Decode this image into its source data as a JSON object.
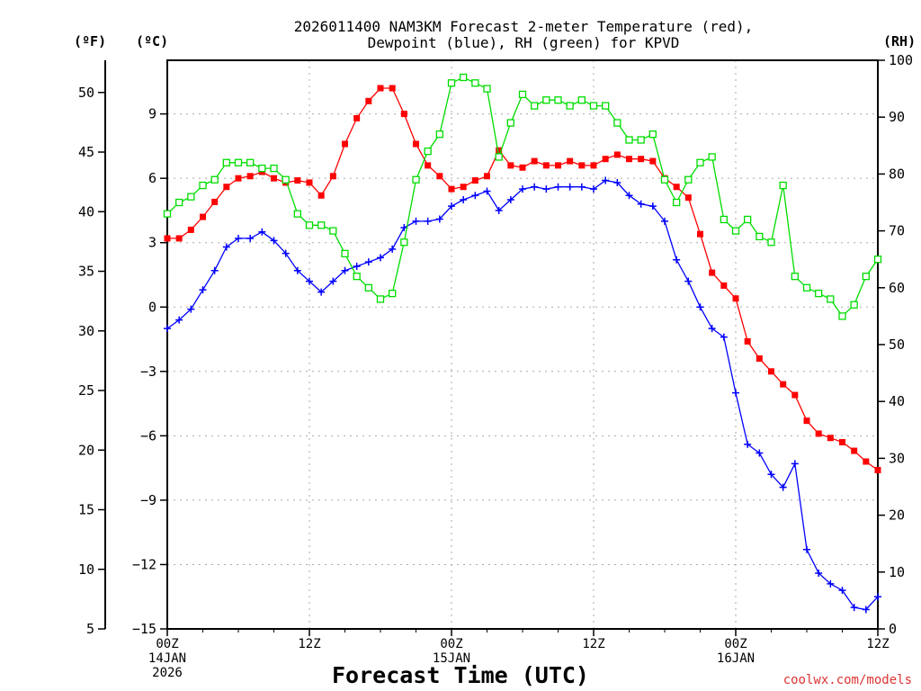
{
  "chart_data": {
    "type": "line",
    "title_lines": [
      "2026011400 NAM3KM Forecast 2-meter Temperature (red),",
      "Dewpoint (blue), RH (green) for KPVD"
    ],
    "xlabel": "Forecast Time (UTC)",
    "credit": "coolwx.com/models",
    "units": {
      "fahrenheit": "(ºF)",
      "celsius": "(ºC)",
      "rh": "(RH)"
    },
    "x_hours": [
      0,
      1,
      2,
      3,
      4,
      5,
      6,
      7,
      8,
      9,
      10,
      11,
      12,
      13,
      14,
      15,
      16,
      17,
      18,
      19,
      20,
      21,
      22,
      23,
      24,
      25,
      26,
      27,
      28,
      29,
      30,
      31,
      32,
      33,
      34,
      35,
      36,
      37,
      38,
      39,
      40,
      41,
      42,
      43,
      44,
      45,
      46,
      47,
      48,
      49,
      50,
      51,
      52,
      53,
      54,
      55,
      56,
      57,
      58,
      59,
      60
    ],
    "xlim": [
      0,
      60
    ],
    "x_ticks": [
      {
        "hour": 0,
        "lines": [
          "00Z",
          "14JAN",
          "2026"
        ]
      },
      {
        "hour": 12,
        "lines": [
          "12Z"
        ]
      },
      {
        "hour": 24,
        "lines": [
          "00Z",
          "15JAN"
        ]
      },
      {
        "hour": 36,
        "lines": [
          "12Z"
        ]
      },
      {
        "hour": 48,
        "lines": [
          "00Z",
          "16JAN"
        ]
      },
      {
        "hour": 60,
        "lines": [
          "12Z"
        ]
      }
    ],
    "celsius_axis": {
      "ylim": [
        -15,
        11.5
      ],
      "ticks": [
        -15,
        -12,
        -9,
        -6,
        -3,
        0,
        3,
        6,
        9
      ],
      "tick_labels": [
        "−15",
        "−12",
        "−9",
        "−6",
        "−3",
        "0",
        "3",
        "6",
        "9"
      ]
    },
    "fahrenheit_axis": {
      "ticks": [
        5,
        10,
        15,
        20,
        25,
        30,
        35,
        40,
        45,
        50
      ],
      "tick_labels": [
        "5",
        "10",
        "15",
        "20",
        "25",
        "30",
        "35",
        "40",
        "45",
        "50"
      ]
    },
    "rh_axis": {
      "ylim": [
        0,
        100
      ],
      "ticks": [
        0,
        10,
        20,
        30,
        40,
        50,
        60,
        70,
        80,
        90,
        100
      ],
      "tick_labels": [
        "0",
        "10",
        "20",
        "30",
        "40",
        "50",
        "60",
        "70",
        "80",
        "90",
        "100"
      ]
    },
    "series": [
      {
        "name": "Temperature",
        "axis": "celsius",
        "color": "#ff0000",
        "marker": "filled-square",
        "values": [
          3.2,
          3.2,
          3.6,
          4.2,
          4.9,
          5.6,
          6.0,
          6.1,
          6.3,
          6.0,
          5.8,
          5.9,
          5.8,
          5.2,
          6.1,
          7.6,
          8.8,
          9.6,
          10.2,
          10.2,
          9.0,
          7.6,
          6.6,
          6.1,
          5.5,
          5.6,
          5.9,
          6.1,
          7.3,
          6.6,
          6.5,
          6.8,
          6.6,
          6.6,
          6.8,
          6.6,
          6.6,
          6.9,
          7.1,
          6.9,
          6.9,
          6.8,
          6.0,
          5.6,
          5.1,
          3.4,
          1.6,
          1.0,
          0.4,
          -1.6,
          -2.4,
          -3.0,
          -3.6,
          -4.1,
          -5.3,
          -5.9,
          -6.1,
          -6.3,
          -6.7,
          -7.2,
          -7.6
        ]
      },
      {
        "name": "Dewpoint",
        "axis": "celsius",
        "color": "#0000ff",
        "marker": "plus",
        "values": [
          -1.0,
          -0.6,
          -0.1,
          0.8,
          1.7,
          2.8,
          3.2,
          3.2,
          3.5,
          3.1,
          2.5,
          1.7,
          1.2,
          0.7,
          1.2,
          1.7,
          1.9,
          2.1,
          2.3,
          2.7,
          3.7,
          4.0,
          4.0,
          4.1,
          4.7,
          5.0,
          5.2,
          5.4,
          4.5,
          5.0,
          5.5,
          5.6,
          5.5,
          5.6,
          5.6,
          5.6,
          5.5,
          5.9,
          5.8,
          5.2,
          4.8,
          4.7,
          4.0,
          2.2,
          1.2,
          0.0,
          -1.0,
          -1.4,
          -4.0,
          -6.4,
          -6.8,
          -7.8,
          -8.4,
          -7.3,
          -11.3,
          -12.4,
          -12.9,
          -13.2,
          -14.0,
          -14.1,
          -13.5
        ]
      },
      {
        "name": "RH",
        "axis": "rh",
        "color": "#00dd00",
        "marker": "open-square",
        "values": [
          73,
          75,
          76,
          78,
          79,
          82,
          82,
          82,
          81,
          81,
          79,
          73,
          71,
          71,
          70,
          66,
          62,
          60,
          58,
          59,
          68,
          79,
          84,
          87,
          96,
          97,
          96,
          95,
          83,
          89,
          94,
          92,
          93,
          93,
          92,
          93,
          92,
          92,
          89,
          86,
          86,
          87,
          79,
          75,
          79,
          82,
          83,
          72,
          70,
          72,
          69,
          68,
          78,
          62,
          60,
          59,
          58,
          55,
          57,
          62,
          65
        ]
      }
    ]
  }
}
